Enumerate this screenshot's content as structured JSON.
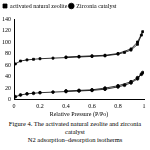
{
  "chart_data": {
    "type": "scatter",
    "x_label": "Relative Pressure (P/Po)",
    "annotations": [
      "Figure 4. The activated natural zeolite and zirconia catalyst",
      "N2 adsorption–desorption isotherms"
    ],
    "xlim": [
      0,
      1
    ],
    "xticks": [
      0,
      0.2,
      0.4,
      0.6,
      0.8,
      1
    ],
    "ylim": [
      0,
      140
    ],
    "yticks": [
      0,
      20,
      40,
      60,
      80,
      100,
      120,
      140
    ],
    "legend": "upper left",
    "grid": false,
    "series": [
      {
        "name": "activated natural zeolite",
        "color": "#000000",
        "marker": "square",
        "line_style": "solid",
        "x": [
          0.01,
          0.05,
          0.1,
          0.15,
          0.2,
          0.3,
          0.4,
          0.5,
          0.6,
          0.7,
          0.8,
          0.85,
          0.9,
          0.95,
          0.98,
          0.99,
          0.95,
          0.9,
          0.8,
          0.7,
          0.6,
          0.5,
          0.4
        ],
        "values": [
          62,
          67,
          69,
          70,
          71,
          72,
          73,
          74,
          75,
          76,
          79,
          82,
          86,
          96,
          112,
          118,
          100,
          88,
          80,
          77,
          76,
          75,
          74
        ]
      },
      {
        "name": "Zirconia catalyst",
        "color": "#000000",
        "marker": "circle",
        "line_style": "solid",
        "x": [
          0.01,
          0.05,
          0.1,
          0.15,
          0.2,
          0.3,
          0.4,
          0.5,
          0.6,
          0.7,
          0.8,
          0.85,
          0.9,
          0.95,
          0.98,
          0.99,
          0.95,
          0.9,
          0.8,
          0.7,
          0.6,
          0.5,
          0.4
        ],
        "values": [
          5,
          8,
          10,
          11,
          12,
          13,
          14,
          15,
          16,
          18,
          22,
          25,
          29,
          36,
          44,
          47,
          38,
          31,
          24,
          20,
          17,
          16,
          15
        ]
      }
    ]
  }
}
